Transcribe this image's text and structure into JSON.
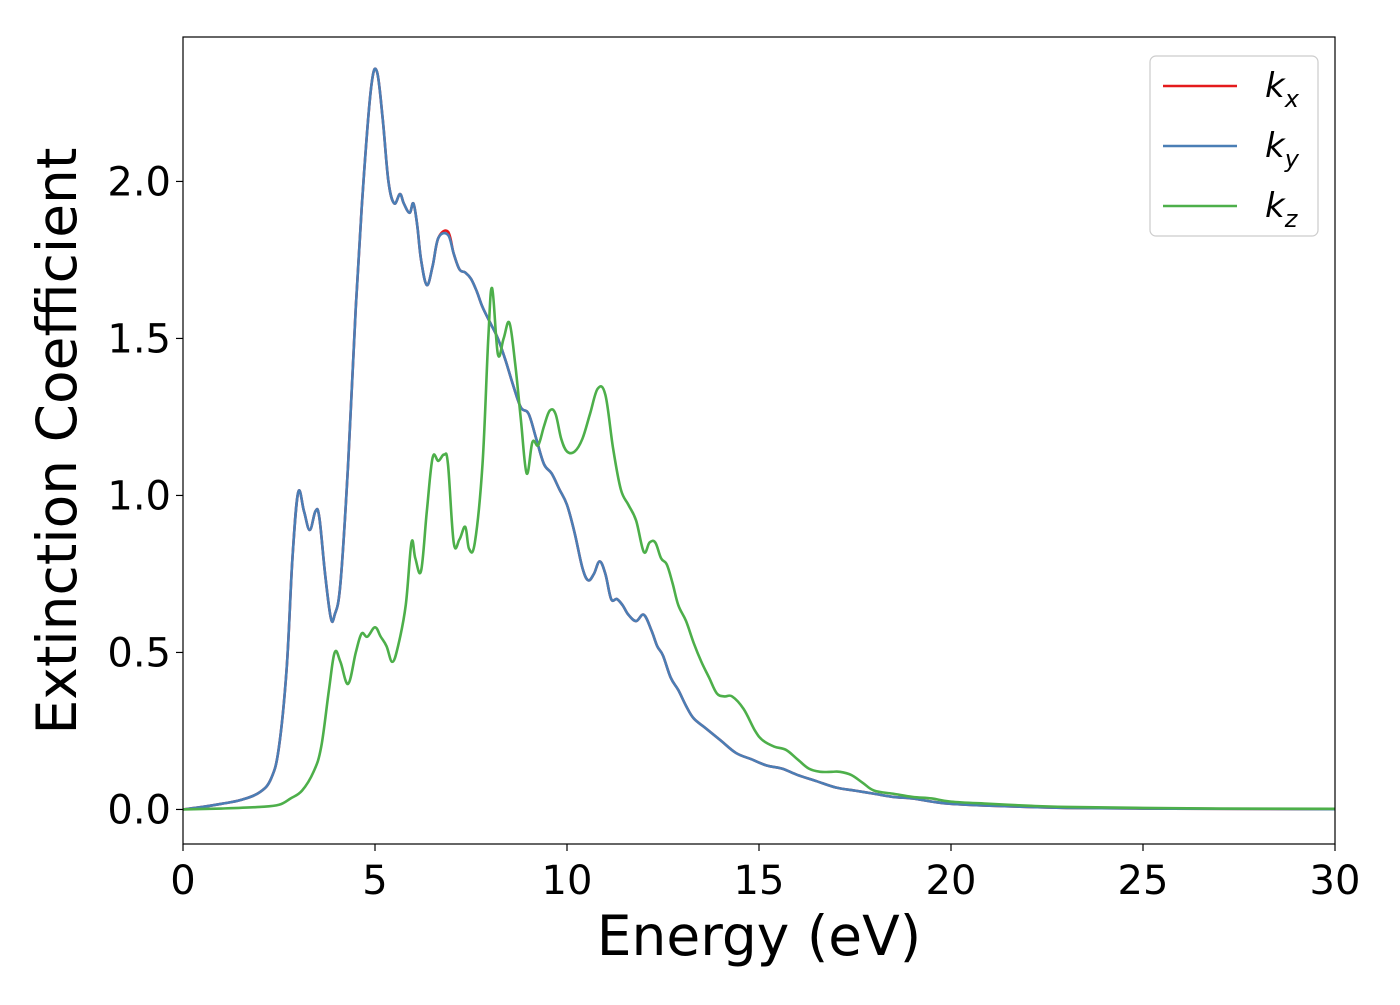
{
  "chart_data": {
    "type": "line",
    "xlabel": "Energy (eV)",
    "ylabel": "Extinction Coefficient",
    "xlim": [
      0,
      30
    ],
    "ylim": [
      -0.11,
      2.46
    ],
    "x_ticks": [
      0,
      5,
      10,
      15,
      20,
      25,
      30
    ],
    "x_tick_labels": [
      "0",
      "5",
      "10",
      "15",
      "20",
      "25",
      "30"
    ],
    "y_ticks": [
      0.0,
      0.5,
      1.0,
      1.5,
      2.0
    ],
    "y_tick_labels": [
      "0.0",
      "0.5",
      "1.0",
      "1.5",
      "2.0"
    ],
    "grid": false,
    "legend_position": "top-right",
    "series": [
      {
        "name": "k",
        "subscript": "x",
        "color": "#e41a1c",
        "x": [
          0,
          0.5,
          1,
          1.5,
          2,
          2.3,
          2.5,
          2.7,
          2.85,
          3,
          3.15,
          3.3,
          3.45,
          3.55,
          3.7,
          3.85,
          3.95,
          4.1,
          4.3,
          4.5,
          4.7,
          4.9,
          5.05,
          5.2,
          5.35,
          5.5,
          5.65,
          5.75,
          5.9,
          6.0,
          6.1,
          6.2,
          6.35,
          6.5,
          6.65,
          6.9,
          7.05,
          7.2,
          7.35,
          7.5,
          7.65,
          7.8,
          8.0,
          8.2,
          8.4,
          8.6,
          8.8,
          9.0,
          9.2,
          9.4,
          9.6,
          9.8,
          10.0,
          10.2,
          10.4,
          10.55,
          10.7,
          10.85,
          11.0,
          11.15,
          11.3,
          11.45,
          11.6,
          11.8,
          12.0,
          12.2,
          12.35,
          12.5,
          12.7,
          12.9,
          13.1,
          13.3,
          13.6,
          14.0,
          14.4,
          14.8,
          15.2,
          15.6,
          16.0,
          16.5,
          17.0,
          17.5,
          18.0,
          18.5,
          19.0,
          19.5,
          20.0,
          21.0,
          22.0,
          23.0,
          25.0,
          27.0,
          30.0
        ],
        "y": [
          0.0,
          0.008,
          0.018,
          0.03,
          0.055,
          0.1,
          0.2,
          0.45,
          0.8,
          1.01,
          0.95,
          0.89,
          0.95,
          0.93,
          0.75,
          0.61,
          0.62,
          0.72,
          1.1,
          1.6,
          2.0,
          2.3,
          2.35,
          2.2,
          2.0,
          1.93,
          1.96,
          1.93,
          1.9,
          1.93,
          1.86,
          1.75,
          1.67,
          1.73,
          1.82,
          1.84,
          1.77,
          1.72,
          1.71,
          1.69,
          1.65,
          1.6,
          1.55,
          1.5,
          1.43,
          1.35,
          1.28,
          1.26,
          1.18,
          1.1,
          1.07,
          1.02,
          0.97,
          0.88,
          0.77,
          0.73,
          0.75,
          0.79,
          0.75,
          0.67,
          0.67,
          0.65,
          0.62,
          0.6,
          0.62,
          0.57,
          0.52,
          0.49,
          0.42,
          0.38,
          0.33,
          0.29,
          0.26,
          0.22,
          0.18,
          0.16,
          0.14,
          0.13,
          0.11,
          0.09,
          0.07,
          0.06,
          0.05,
          0.04,
          0.035,
          0.025,
          0.018,
          0.012,
          0.008,
          0.005,
          0.003,
          0.002,
          0.001
        ]
      },
      {
        "name": "k",
        "subscript": "y",
        "color": "#4a7eb5",
        "x": [
          0,
          0.5,
          1,
          1.5,
          2,
          2.3,
          2.5,
          2.7,
          2.85,
          3,
          3.15,
          3.3,
          3.45,
          3.55,
          3.7,
          3.85,
          3.95,
          4.1,
          4.3,
          4.5,
          4.7,
          4.9,
          5.05,
          5.2,
          5.35,
          5.5,
          5.65,
          5.75,
          5.9,
          6.0,
          6.1,
          6.2,
          6.35,
          6.5,
          6.65,
          6.9,
          7.05,
          7.2,
          7.35,
          7.5,
          7.65,
          7.8,
          8.0,
          8.2,
          8.4,
          8.6,
          8.8,
          9.0,
          9.2,
          9.4,
          9.6,
          9.8,
          10.0,
          10.2,
          10.4,
          10.55,
          10.7,
          10.85,
          11.0,
          11.15,
          11.3,
          11.45,
          11.6,
          11.8,
          12.0,
          12.2,
          12.35,
          12.5,
          12.7,
          12.9,
          13.1,
          13.3,
          13.6,
          14.0,
          14.4,
          14.8,
          15.2,
          15.6,
          16.0,
          16.5,
          17.0,
          17.5,
          18.0,
          18.5,
          19.0,
          19.5,
          20.0,
          21.0,
          22.0,
          23.0,
          25.0,
          27.0,
          30.0
        ],
        "y": [
          0.0,
          0.008,
          0.018,
          0.03,
          0.055,
          0.1,
          0.2,
          0.45,
          0.8,
          1.01,
          0.95,
          0.89,
          0.95,
          0.93,
          0.75,
          0.61,
          0.62,
          0.72,
          1.1,
          1.6,
          2.0,
          2.3,
          2.35,
          2.2,
          2.0,
          1.93,
          1.96,
          1.93,
          1.9,
          1.93,
          1.86,
          1.75,
          1.67,
          1.73,
          1.82,
          1.83,
          1.77,
          1.72,
          1.71,
          1.69,
          1.65,
          1.6,
          1.55,
          1.5,
          1.43,
          1.35,
          1.28,
          1.26,
          1.18,
          1.1,
          1.07,
          1.02,
          0.97,
          0.88,
          0.77,
          0.73,
          0.75,
          0.79,
          0.75,
          0.67,
          0.67,
          0.65,
          0.62,
          0.6,
          0.62,
          0.57,
          0.52,
          0.49,
          0.42,
          0.38,
          0.33,
          0.29,
          0.26,
          0.22,
          0.18,
          0.16,
          0.14,
          0.13,
          0.11,
          0.09,
          0.07,
          0.06,
          0.05,
          0.04,
          0.035,
          0.025,
          0.018,
          0.012,
          0.008,
          0.005,
          0.003,
          0.002,
          0.001
        ]
      },
      {
        "name": "k",
        "subscript": "z",
        "color": "#4daf4a",
        "x": [
          0,
          1,
          2,
          2.5,
          2.8,
          3.1,
          3.4,
          3.6,
          3.8,
          3.95,
          4.1,
          4.3,
          4.5,
          4.65,
          4.8,
          5.0,
          5.15,
          5.3,
          5.45,
          5.6,
          5.8,
          5.95,
          6.05,
          6.2,
          6.35,
          6.5,
          6.65,
          6.8,
          6.9,
          7.05,
          7.2,
          7.35,
          7.45,
          7.6,
          7.8,
          7.95,
          8.05,
          8.2,
          8.35,
          8.5,
          8.65,
          8.8,
          8.95,
          9.1,
          9.25,
          9.4,
          9.55,
          9.7,
          9.85,
          10.0,
          10.2,
          10.4,
          10.6,
          10.8,
          11.0,
          11.2,
          11.4,
          11.6,
          11.8,
          12.0,
          12.15,
          12.3,
          12.45,
          12.6,
          12.75,
          12.9,
          13.1,
          13.3,
          13.5,
          13.7,
          13.9,
          14.1,
          14.3,
          14.6,
          14.9,
          15.1,
          15.4,
          15.7,
          16.0,
          16.3,
          16.6,
          16.9,
          17.1,
          17.4,
          17.7,
          18.0,
          18.5,
          19.0,
          19.5,
          20.0,
          21.0,
          22.0,
          23.0,
          25.0,
          27.0,
          30.0
        ],
        "y": [
          0.0,
          0.003,
          0.008,
          0.015,
          0.035,
          0.06,
          0.12,
          0.2,
          0.38,
          0.5,
          0.47,
          0.4,
          0.5,
          0.56,
          0.55,
          0.58,
          0.55,
          0.52,
          0.47,
          0.52,
          0.65,
          0.85,
          0.8,
          0.76,
          0.95,
          1.12,
          1.11,
          1.13,
          1.1,
          0.85,
          0.86,
          0.9,
          0.83,
          0.85,
          1.1,
          1.5,
          1.66,
          1.45,
          1.5,
          1.55,
          1.42,
          1.24,
          1.07,
          1.17,
          1.16,
          1.22,
          1.27,
          1.26,
          1.18,
          1.14,
          1.14,
          1.18,
          1.26,
          1.34,
          1.32,
          1.15,
          1.02,
          0.97,
          0.92,
          0.82,
          0.85,
          0.85,
          0.8,
          0.78,
          0.72,
          0.65,
          0.6,
          0.53,
          0.47,
          0.42,
          0.37,
          0.36,
          0.36,
          0.32,
          0.25,
          0.22,
          0.2,
          0.19,
          0.16,
          0.13,
          0.12,
          0.12,
          0.12,
          0.11,
          0.085,
          0.06,
          0.05,
          0.04,
          0.035,
          0.025,
          0.018,
          0.012,
          0.008,
          0.005,
          0.003,
          0.002
        ]
      }
    ]
  }
}
